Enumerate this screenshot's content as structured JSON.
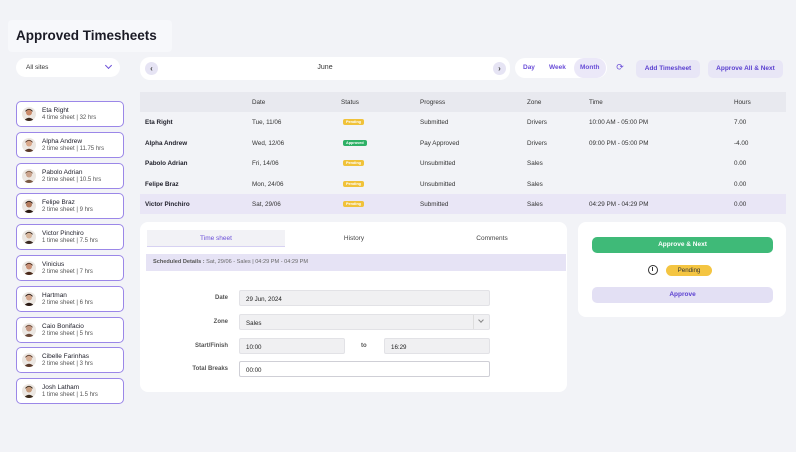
{
  "page": {
    "title": "Approved Timesheets"
  },
  "filters": {
    "site_select": "All sites"
  },
  "period": {
    "month": "June",
    "prev_icon": "chevron-left-icon",
    "next_icon": "chevron-right-icon"
  },
  "views": {
    "day": "Day",
    "week": "Week",
    "month": "Month",
    "active": "Month"
  },
  "toolbar": {
    "refresh_icon": "refresh-icon",
    "add_timesheet": "Add Timesheet",
    "approve_all_next": "Approve All & Next"
  },
  "employees": [
    {
      "name": "Eta Right",
      "summary": "4 time sheet | 32 hrs"
    },
    {
      "name": "Alpha Andrew",
      "summary": "2 time sheet | 11.75 hrs"
    },
    {
      "name": "Pabolo Adrian",
      "summary": "2 time sheet | 10.5 hrs"
    },
    {
      "name": "Felipe Braz",
      "summary": "2 time sheet | 9 hrs"
    },
    {
      "name": "Victor Pinchiro",
      "summary": "1 time sheet | 7.5 hrs"
    },
    {
      "name": "Vinicius",
      "summary": "2 time sheet | 7 hrs"
    },
    {
      "name": "Hartman",
      "summary": "2 time sheet | 6 hrs"
    },
    {
      "name": "Caio Bonifacio",
      "summary": "2 time sheet | 5 hrs"
    },
    {
      "name": "Cibelle Farinhas",
      "summary": "2 time sheet | 3 hrs"
    },
    {
      "name": "Josh Latham",
      "summary": "1 time sheet | 1.5 hrs"
    }
  ],
  "table": {
    "headers": {
      "date": "Date",
      "status": "Status",
      "progress": "Progress",
      "zone": "Zone",
      "time": "Time",
      "hours": "Hours"
    },
    "rows": [
      {
        "name": "Eta Right",
        "date": "Tue, 11/06",
        "status": "Pending",
        "progress": "Submitted",
        "zone": "Drivers",
        "time": "10:00 AM - 05:00 PM",
        "hours": "7.00"
      },
      {
        "name": "Alpha Andrew",
        "date": "Wed, 12/06",
        "status": "Approved",
        "progress": "Pay Approved",
        "zone": "Drivers",
        "time": "09:00 PM - 05:00 PM",
        "hours": "-4.00"
      },
      {
        "name": "Pabolo Adrian",
        "date": "Fri, 14/06",
        "status": "Pending",
        "progress": "Unsubmitted",
        "zone": "Sales",
        "time": "",
        "hours": "0.00"
      },
      {
        "name": "Felipe Braz",
        "date": "Mon, 24/06",
        "status": "Pending",
        "progress": "Unsubmitted",
        "zone": "Sales",
        "time": "",
        "hours": "0.00"
      },
      {
        "name": "Victor Pinchiro",
        "date": "Sat, 29/06",
        "status": "Pending",
        "progress": "Submitted",
        "zone": "Sales",
        "time": "04:29 PM - 04:29 PM",
        "hours": "0.00"
      }
    ]
  },
  "details": {
    "tabs": [
      "Time sheet",
      "History",
      "Comments"
    ],
    "scheduled_label": "Scheduled Details :",
    "scheduled_value": "Sat, 29/06 - Sales | 04:29 PM - 04:29 PM",
    "date_label": "Date",
    "date_value": "29 Jun, 2024",
    "zone_label": "Zone",
    "zone_value": "Sales",
    "start_finish_label": "Start/Finish",
    "start_value": "10:00",
    "to_label": "to",
    "finish_value": "16:29",
    "total_breaks_label": "Total Breaks",
    "total_breaks_value": "00:00"
  },
  "actions": {
    "approve_next": "Approve & Next",
    "status": "Pending",
    "approve": "Approve"
  },
  "colors": {
    "accent": "#6b4fd8",
    "pending": "#f0c23a",
    "approved": "#2eb066",
    "approve_next": "#3fba78"
  }
}
